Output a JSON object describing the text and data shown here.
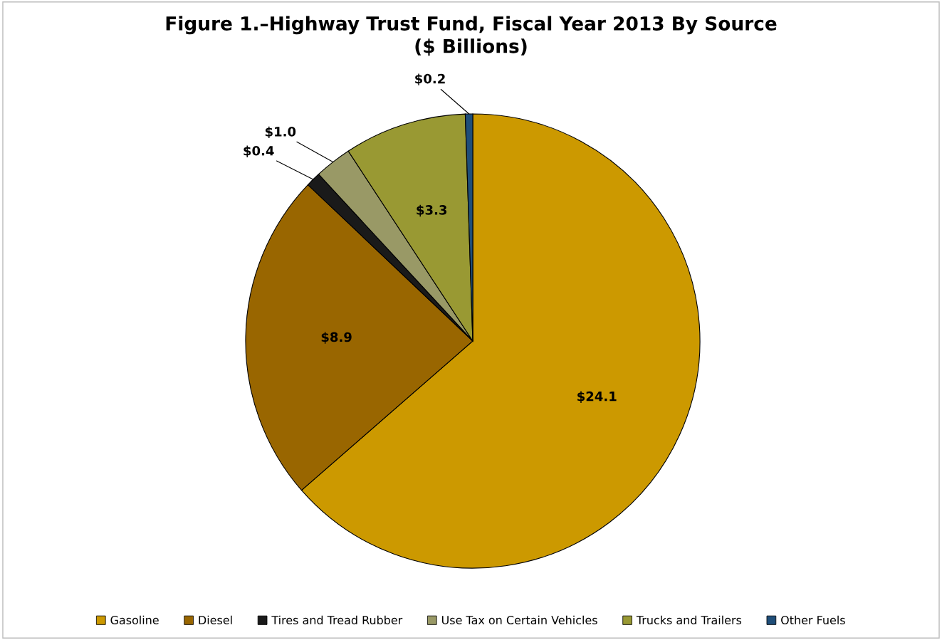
{
  "chart_data": {
    "type": "pie",
    "title": "Figure 1.–Highway Trust Fund, Fiscal Year 2013 By Source\n($ Billions)",
    "categories": [
      "Gasoline",
      "Diesel",
      "Tires and Tread Rubber",
      "Use Tax on Certain Vehicles",
      "Trucks and Trailers",
      "Other Fuels"
    ],
    "values": [
      24.1,
      8.9,
      0.4,
      1.0,
      3.3,
      0.2
    ],
    "colors": [
      "#cc9900",
      "#996600",
      "#1a1a1a",
      "#999966",
      "#999933",
      "#1f4e79"
    ],
    "value_labels": [
      "$24.1",
      "$8.9",
      "$0.4",
      "$1.0",
      "$3.3",
      "$0.2"
    ],
    "legend": "bottom"
  }
}
